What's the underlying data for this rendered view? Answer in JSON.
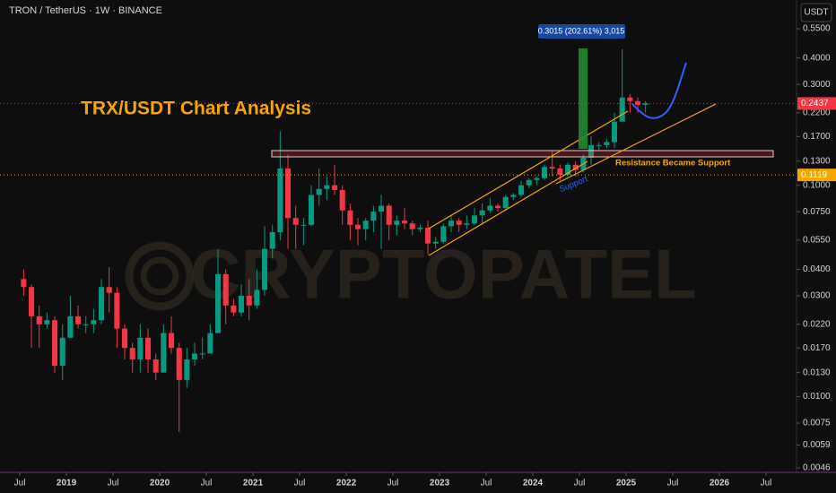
{
  "chart_data": {
    "type": "candlestick",
    "title": "TRON / TetherUS · 1W · BINANCE",
    "heading": "TRX/USDT Chart Analysis",
    "watermark": "CRYPTOPATEL",
    "currency": "USDT",
    "annotations": {
      "measure": "0.3015 (202.61%) 3,015",
      "resistance": "Resistance Became Support",
      "support": "Support"
    },
    "up_color": "#089981",
    "down_color": "#f23645",
    "log_scale": true,
    "x": [
      "2018-07",
      "2018-08",
      "2018-09",
      "2018-10",
      "2018-11",
      "2018-12",
      "2019-01",
      "2019-02",
      "2019-03",
      "2019-04",
      "2019-05",
      "2019-06",
      "2019-07",
      "2019-08",
      "2019-09",
      "2019-10",
      "2019-11",
      "2019-12",
      "2020-01",
      "2020-02",
      "2020-03",
      "2020-04",
      "2020-05",
      "2020-06",
      "2020-07",
      "2020-08",
      "2020-09",
      "2020-10",
      "2020-11",
      "2020-12",
      "2021-01",
      "2021-02",
      "2021-03",
      "2021-04",
      "2021-05",
      "2021-06",
      "2021-07",
      "2021-08",
      "2021-09",
      "2021-10",
      "2021-11",
      "2021-12",
      "2022-01",
      "2022-02",
      "2022-03",
      "2022-04",
      "2022-05",
      "2022-06",
      "2022-07",
      "2022-08",
      "2022-09",
      "2022-10",
      "2022-11",
      "2022-12",
      "2023-01",
      "2023-02",
      "2023-03",
      "2023-04",
      "2023-05",
      "2023-06",
      "2023-07",
      "2023-08",
      "2023-09",
      "2023-10",
      "2023-11",
      "2023-12",
      "2024-01",
      "2024-02",
      "2024-03",
      "2024-04",
      "2024-05",
      "2024-06",
      "2024-07",
      "2024-08",
      "2024-09",
      "2024-10",
      "2024-11",
      "2024-12",
      "2025-01",
      "2025-02",
      "2025-03"
    ],
    "open": [
      0.036,
      0.033,
      0.024,
      0.022,
      0.023,
      0.014,
      0.019,
      0.024,
      0.022,
      0.022,
      0.023,
      0.033,
      0.031,
      0.021,
      0.017,
      0.015,
      0.019,
      0.015,
      0.013,
      0.02,
      0.017,
      0.012,
      0.015,
      0.016,
      0.016,
      0.02,
      0.038,
      0.027,
      0.025,
      0.03,
      0.027,
      0.032,
      0.05,
      0.06,
      0.12,
      0.07,
      0.065,
      0.065,
      0.09,
      0.096,
      0.1,
      0.095,
      0.076,
      0.065,
      0.062,
      0.068,
      0.075,
      0.08,
      0.065,
      0.068,
      0.066,
      0.062,
      0.063,
      0.053,
      0.054,
      0.064,
      0.068,
      0.065,
      0.066,
      0.072,
      0.076,
      0.08,
      0.078,
      0.088,
      0.09,
      0.1,
      0.106,
      0.108,
      0.122,
      0.12,
      0.112,
      0.125,
      0.118,
      0.135,
      0.155,
      0.155,
      0.16,
      0.2,
      0.26,
      0.25,
      0.24
    ],
    "high": [
      0.04,
      0.034,
      0.027,
      0.025,
      0.024,
      0.022,
      0.03,
      0.027,
      0.024,
      0.026,
      0.036,
      0.041,
      0.033,
      0.022,
      0.018,
      0.022,
      0.021,
      0.016,
      0.022,
      0.024,
      0.018,
      0.017,
      0.018,
      0.019,
      0.022,
      0.05,
      0.04,
      0.029,
      0.034,
      0.036,
      0.04,
      0.064,
      0.065,
      0.18,
      0.14,
      0.08,
      0.07,
      0.1,
      0.12,
      0.11,
      0.125,
      0.1,
      0.082,
      0.07,
      0.07,
      0.08,
      0.09,
      0.082,
      0.072,
      0.078,
      0.068,
      0.065,
      0.068,
      0.057,
      0.066,
      0.072,
      0.07,
      0.072,
      0.078,
      0.082,
      0.087,
      0.082,
      0.09,
      0.092,
      0.105,
      0.108,
      0.11,
      0.125,
      0.145,
      0.125,
      0.128,
      0.13,
      0.14,
      0.17,
      0.16,
      0.165,
      0.22,
      0.44,
      0.27,
      0.26,
      0.25
    ],
    "low": [
      0.03,
      0.017,
      0.017,
      0.021,
      0.013,
      0.012,
      0.019,
      0.021,
      0.02,
      0.02,
      0.022,
      0.025,
      0.017,
      0.015,
      0.013,
      0.013,
      0.013,
      0.012,
      0.013,
      0.016,
      0.0068,
      0.011,
      0.014,
      0.015,
      0.016,
      0.02,
      0.022,
      0.024,
      0.024,
      0.023,
      0.026,
      0.03,
      0.045,
      0.055,
      0.05,
      0.05,
      0.052,
      0.064,
      0.08,
      0.085,
      0.09,
      0.065,
      0.055,
      0.052,
      0.055,
      0.06,
      0.05,
      0.055,
      0.058,
      0.062,
      0.058,
      0.06,
      0.047,
      0.05,
      0.053,
      0.06,
      0.06,
      0.062,
      0.065,
      0.065,
      0.074,
      0.075,
      0.076,
      0.085,
      0.088,
      0.097,
      0.1,
      0.106,
      0.11,
      0.105,
      0.11,
      0.11,
      0.115,
      0.125,
      0.145,
      0.15,
      0.15,
      0.2,
      0.22,
      0.22,
      0.22
    ],
    "close": [
      0.033,
      0.024,
      0.022,
      0.023,
      0.014,
      0.019,
      0.024,
      0.022,
      0.022,
      0.023,
      0.033,
      0.031,
      0.021,
      0.017,
      0.015,
      0.019,
      0.015,
      0.013,
      0.02,
      0.017,
      0.012,
      0.015,
      0.016,
      0.016,
      0.02,
      0.038,
      0.027,
      0.025,
      0.03,
      0.027,
      0.032,
      0.05,
      0.06,
      0.12,
      0.07,
      0.065,
      0.065,
      0.09,
      0.096,
      0.1,
      0.095,
      0.076,
      0.065,
      0.062,
      0.068,
      0.075,
      0.08,
      0.065,
      0.068,
      0.066,
      0.062,
      0.063,
      0.053,
      0.054,
      0.064,
      0.068,
      0.065,
      0.066,
      0.072,
      0.076,
      0.08,
      0.078,
      0.088,
      0.09,
      0.1,
      0.106,
      0.108,
      0.122,
      0.12,
      0.112,
      0.125,
      0.118,
      0.135,
      0.155,
      0.155,
      0.16,
      0.2,
      0.26,
      0.25,
      0.24,
      0.2437
    ],
    "xlim": [
      2018.288,
      2026.827
    ],
    "xticks": [
      {
        "value": 2018.5,
        "label": "Jul"
      },
      {
        "value": 2019,
        "label": "2019"
      },
      {
        "value": 2019.5,
        "label": "Jul"
      },
      {
        "value": 2020,
        "label": "2020"
      },
      {
        "value": 2020.5,
        "label": "Jul"
      },
      {
        "value": 2021,
        "label": "2021"
      },
      {
        "value": 2021.5,
        "label": "Jul"
      },
      {
        "value": 2022,
        "label": "2022"
      },
      {
        "value": 2022.5,
        "label": "Jul"
      },
      {
        "value": 2023,
        "label": "2023"
      },
      {
        "value": 2023.5,
        "label": "Jul"
      },
      {
        "value": 2024,
        "label": "2024"
      },
      {
        "value": 2024.5,
        "label": "Jul"
      },
      {
        "value": 2025,
        "label": "2025"
      },
      {
        "value": 2025.5,
        "label": "Jul"
      },
      {
        "value": 2026,
        "label": "2026"
      },
      {
        "value": 2026.5,
        "label": "Jul"
      }
    ],
    "ylim": [
      0.00447,
      0.752
    ],
    "yticks": [
      {
        "value": 0.55,
        "label": "0.5500"
      },
      {
        "value": 0.4,
        "label": "0.4000"
      },
      {
        "value": 0.3,
        "label": "0.3000"
      },
      {
        "value": 0.22,
        "label": "0.2200"
      },
      {
        "value": 0.17,
        "label": "0.1700"
      },
      {
        "value": 0.13,
        "label": "0.1300"
      },
      {
        "value": 0.1,
        "label": "0.1000"
      },
      {
        "value": 0.075,
        "label": "0.0750"
      },
      {
        "value": 0.055,
        "label": "0.0550"
      },
      {
        "value": 0.04,
        "label": "0.0400"
      },
      {
        "value": 0.03,
        "label": "0.0300"
      },
      {
        "value": 0.022,
        "label": "0.0220"
      },
      {
        "value": 0.017,
        "label": "0.0170"
      },
      {
        "value": 0.013,
        "label": "0.0130"
      },
      {
        "value": 0.01,
        "label": "0.0100"
      },
      0.0075,
      0.0059,
      0.0046
    ],
    "price_lines": [
      {
        "value": 0.2437,
        "color": "#f23645"
      },
      {
        "value": 0.1119,
        "color": "#f7a600"
      }
    ]
  }
}
